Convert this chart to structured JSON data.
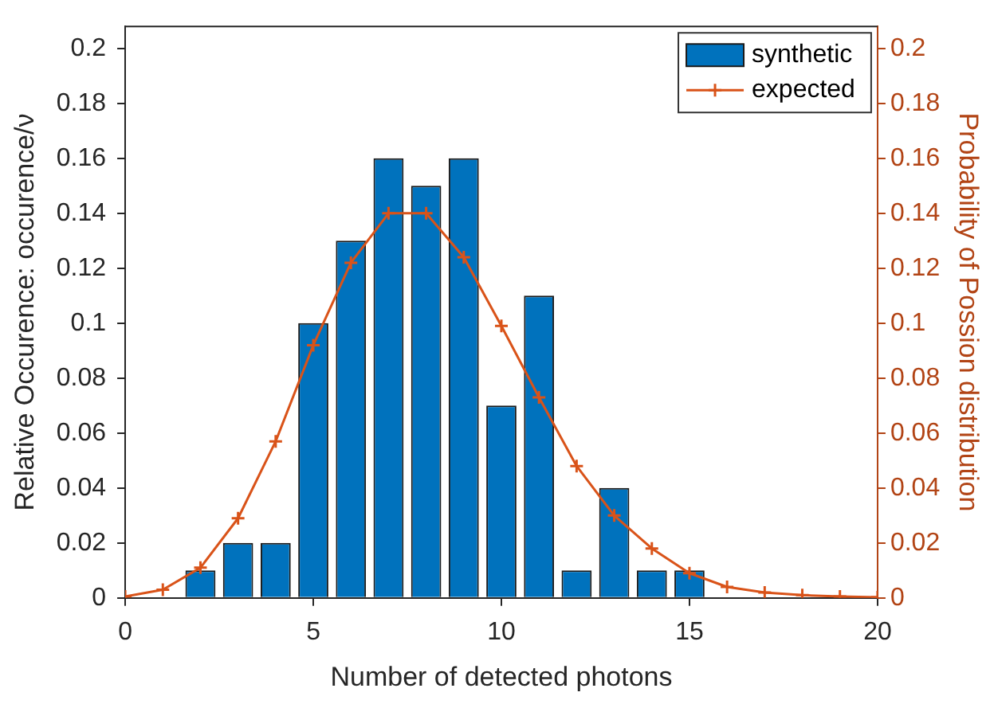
{
  "chart_data": {
    "type": "bar",
    "xlabel": "Number of detected photons",
    "ylabel": "Relative Occurence: occurence/ν",
    "y2label": "Probability of Possion distribution",
    "x": [
      2,
      3,
      4,
      5,
      6,
      7,
      8,
      9,
      10,
      11,
      12,
      13,
      14,
      15
    ],
    "series": [
      {
        "name": "synthetic",
        "color": "#0072bd",
        "values": [
          0.01,
          0.02,
          0.02,
          0.1,
          0.13,
          0.16,
          0.15,
          0.16,
          0.07,
          0.11,
          0.01,
          0.04,
          0.01,
          0.01
        ]
      },
      {
        "name": "expected",
        "type": "line",
        "axis": "y2",
        "color": "#d95319",
        "marker": "cross",
        "x": [
          0,
          1,
          2,
          3,
          4,
          5,
          6,
          7,
          8,
          9,
          10,
          11,
          12,
          13,
          14,
          15,
          16,
          17,
          18,
          19,
          20
        ],
        "values": [
          0.0005,
          0.003,
          0.011,
          0.029,
          0.057,
          0.092,
          0.122,
          0.14,
          0.14,
          0.124,
          0.099,
          0.073,
          0.048,
          0.03,
          0.018,
          0.009,
          0.004,
          0.002,
          0.001,
          0.0005,
          0.0002
        ]
      }
    ],
    "xlim": [
      0,
      20
    ],
    "xticks": [
      0,
      5,
      10,
      15,
      20
    ],
    "ylim": [
      0,
      0.208
    ],
    "yticks": [
      0,
      0.02,
      0.04,
      0.06,
      0.08,
      0.1,
      0.12,
      0.14,
      0.16,
      0.18,
      0.2
    ],
    "y2lim": [
      0,
      0.208
    ],
    "y2ticks": [
      0,
      0.02,
      0.04,
      0.06,
      0.08,
      0.1,
      0.12,
      0.14,
      0.16,
      0.18,
      0.2
    ],
    "grid": false,
    "legend": "top right"
  }
}
